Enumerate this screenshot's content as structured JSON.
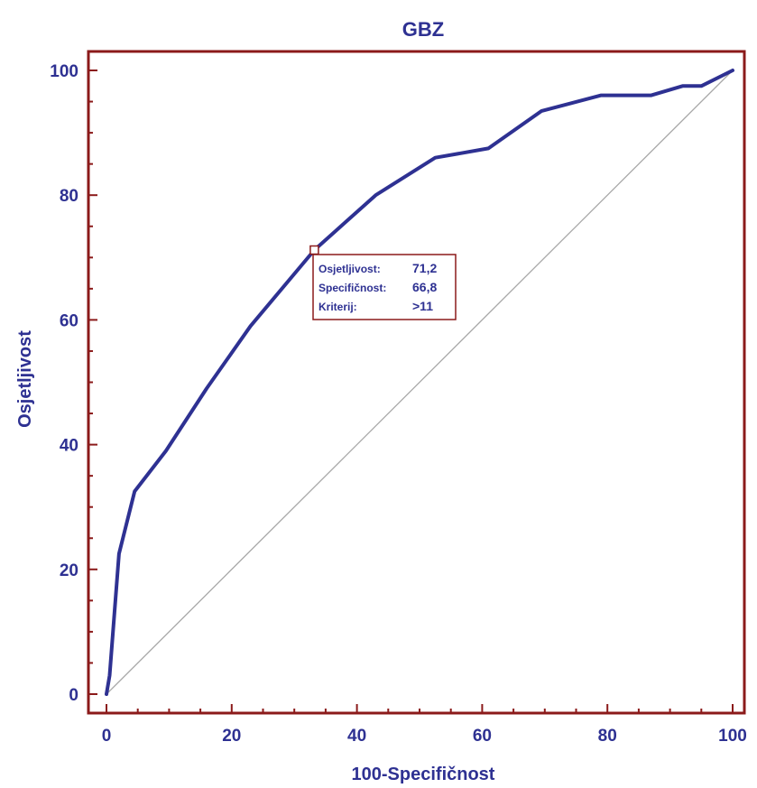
{
  "chart_data": {
    "type": "line",
    "title": "GBZ",
    "xlabel": "100-Specifičnost",
    "ylabel": "Osjetljivost",
    "xlim": [
      0,
      100
    ],
    "ylim": [
      0,
      100
    ],
    "xticks": [
      "0",
      "20",
      "40",
      "60",
      "80",
      "100"
    ],
    "yticks": [
      "0",
      "20",
      "40",
      "60",
      "80",
      "100"
    ],
    "grid": false,
    "colors": {
      "curve": "#2e3192",
      "frame": "#8b1a1a",
      "reference": "#a8a8a8",
      "text": "#2e3192"
    },
    "series": [
      {
        "x": [
          0,
          0.5,
          2,
          4.5,
          9.5,
          16,
          23,
          33.2,
          43,
          52.5,
          61,
          69.5,
          79,
          87,
          92,
          95,
          100
        ],
        "y": [
          0,
          3,
          22.5,
          32.5,
          39,
          49,
          59,
          71.2,
          80,
          86,
          87.5,
          93.5,
          96,
          96,
          97.5,
          97.5,
          100
        ]
      }
    ],
    "reference_line": {
      "x": [
        0,
        100
      ],
      "y": [
        0,
        100
      ]
    },
    "annotation": {
      "point": {
        "x": 33.2,
        "y": 71.2
      },
      "rows": [
        {
          "label": "Osjetljivost:",
          "value": "71,2"
        },
        {
          "label": "Specifičnost:",
          "value": "66,8"
        },
        {
          "label": "Kriterij:",
          "value": ">11"
        }
      ]
    }
  }
}
